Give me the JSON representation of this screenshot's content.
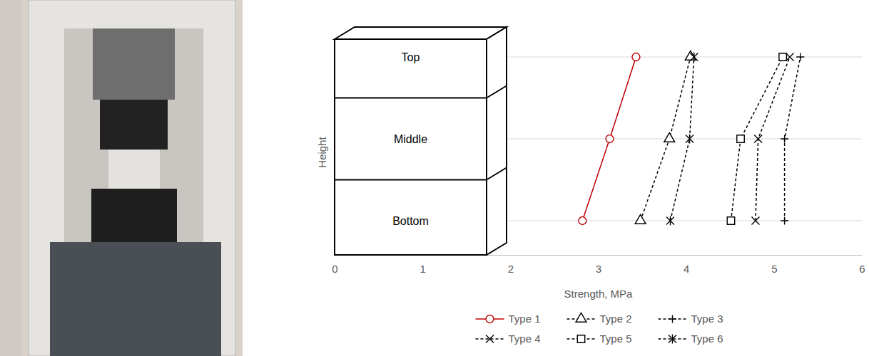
{
  "chart_data": {
    "type": "line",
    "orientation": "horizontal",
    "xlabel": "Strength, MPa",
    "ylabel": "Height",
    "categories": [
      "Bottom",
      "Middle",
      "Top"
    ],
    "xlim": [
      0,
      6
    ],
    "xticks": [
      0,
      1,
      2,
      3,
      4,
      5,
      6
    ],
    "grid": true,
    "legend": "bottom",
    "series": [
      {
        "name": "Type 1",
        "color": "#c00000",
        "marker": "circle",
        "line_style": "solid",
        "values": [
          2.82,
          3.13,
          3.43
        ]
      },
      {
        "name": "Type 2",
        "color": "#000000",
        "marker": "triangle",
        "line_style": "dashed",
        "values": [
          3.48,
          3.81,
          4.05
        ]
      },
      {
        "name": "Type 3",
        "color": "#000000",
        "marker": "plus",
        "line_style": "dashed",
        "values": [
          5.12,
          5.12,
          5.3
        ]
      },
      {
        "name": "Type 4",
        "color": "#000000",
        "marker": "x",
        "line_style": "dashed",
        "values": [
          4.79,
          4.82,
          5.18
        ]
      },
      {
        "name": "Type 5",
        "color": "#000000",
        "marker": "square",
        "line_style": "dashed",
        "values": [
          4.51,
          4.62,
          5.1
        ]
      },
      {
        "name": "Type 6",
        "color": "#000000",
        "marker": "asterisk",
        "line_style": "dashed",
        "values": [
          3.82,
          4.04,
          4.09
        ]
      }
    ]
  }
}
